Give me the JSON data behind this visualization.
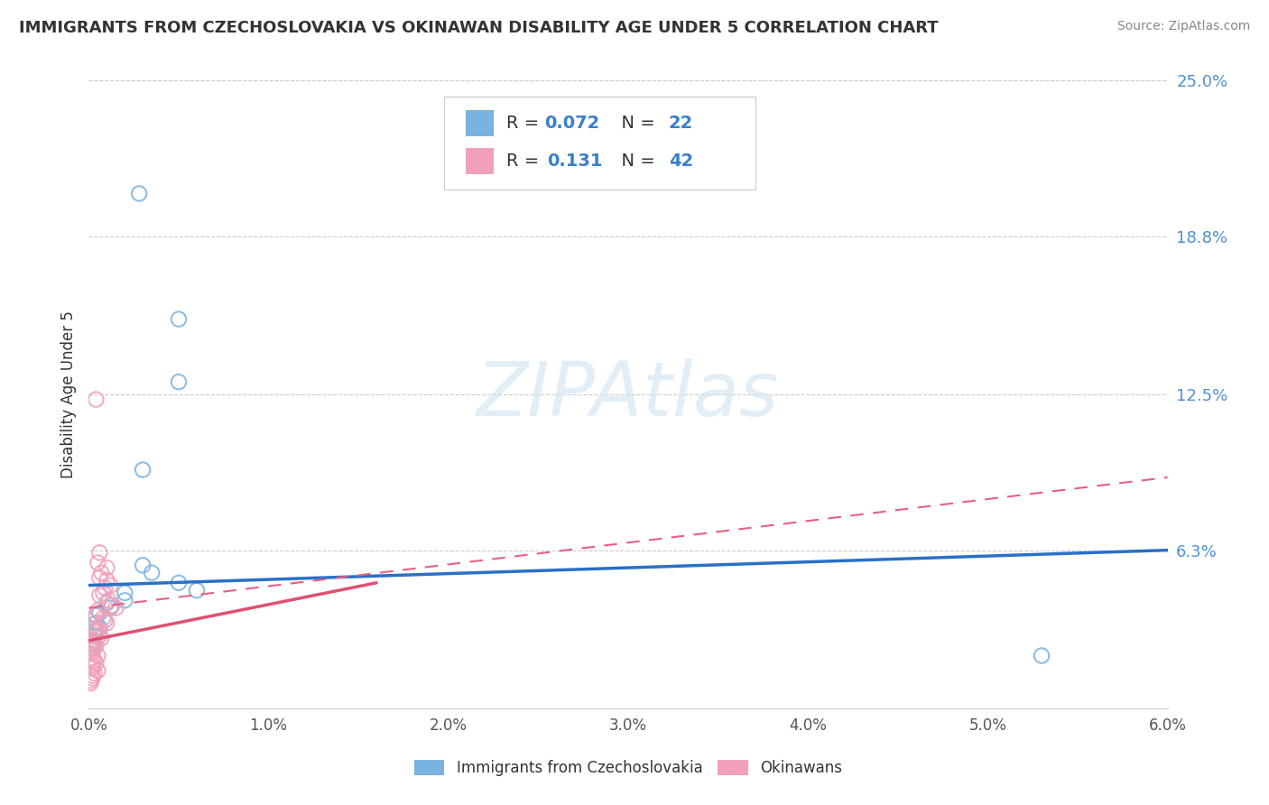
{
  "title": "IMMIGRANTS FROM CZECHOSLOVAKIA VS OKINAWAN DISABILITY AGE UNDER 5 CORRELATION CHART",
  "source": "Source: ZipAtlas.com",
  "ylabel": "Disability Age Under 5",
  "xlim": [
    0.0,
    0.06
  ],
  "ylim": [
    0.0,
    0.25
  ],
  "xtick_labels": [
    "0.0%",
    "1.0%",
    "2.0%",
    "3.0%",
    "4.0%",
    "5.0%",
    "6.0%"
  ],
  "xtick_vals": [
    0.0,
    0.01,
    0.02,
    0.03,
    0.04,
    0.05,
    0.06
  ],
  "ytick_labels_right": [
    "6.3%",
    "12.5%",
    "18.8%",
    "25.0%"
  ],
  "ytick_vals_right": [
    0.063,
    0.125,
    0.188,
    0.25
  ],
  "blue_color": "#7ab3e0",
  "pink_color": "#f0a0b8",
  "blue_scatter": [
    [
      0.0028,
      0.205
    ],
    [
      0.005,
      0.155
    ],
    [
      0.005,
      0.13
    ],
    [
      0.003,
      0.095
    ],
    [
      0.003,
      0.057
    ],
    [
      0.0035,
      0.054
    ],
    [
      0.005,
      0.05
    ],
    [
      0.006,
      0.047
    ],
    [
      0.002,
      0.046
    ],
    [
      0.002,
      0.043
    ],
    [
      0.001,
      0.042
    ],
    [
      0.0012,
      0.04
    ],
    [
      0.0006,
      0.038
    ],
    [
      0.0004,
      0.037
    ],
    [
      0.0004,
      0.034
    ],
    [
      0.0006,
      0.032
    ],
    [
      0.0004,
      0.031
    ],
    [
      0.0003,
      0.029
    ],
    [
      0.0003,
      0.027
    ],
    [
      0.0002,
      0.026
    ],
    [
      0.0001,
      0.024
    ],
    [
      0.053,
      0.021
    ]
  ],
  "pink_scatter": [
    [
      0.0004,
      0.123
    ],
    [
      0.0006,
      0.062
    ],
    [
      0.0005,
      0.058
    ],
    [
      0.001,
      0.056
    ],
    [
      0.0007,
      0.054
    ],
    [
      0.0006,
      0.052
    ],
    [
      0.001,
      0.051
    ],
    [
      0.0012,
      0.049
    ],
    [
      0.0009,
      0.048
    ],
    [
      0.0008,
      0.046
    ],
    [
      0.0006,
      0.045
    ],
    [
      0.0011,
      0.043
    ],
    [
      0.0013,
      0.041
    ],
    [
      0.0015,
      0.04
    ],
    [
      0.0005,
      0.039
    ],
    [
      0.0004,
      0.037
    ],
    [
      0.0008,
      0.036
    ],
    [
      0.0009,
      0.035
    ],
    [
      0.001,
      0.034
    ],
    [
      0.0004,
      0.032
    ],
    [
      0.0005,
      0.031
    ],
    [
      0.0004,
      0.03
    ],
    [
      0.0006,
      0.029
    ],
    [
      0.0007,
      0.028
    ],
    [
      0.0003,
      0.027
    ],
    [
      0.0003,
      0.026
    ],
    [
      0.0004,
      0.025
    ],
    [
      0.0003,
      0.024
    ],
    [
      0.0002,
      0.023
    ],
    [
      0.0002,
      0.022
    ],
    [
      0.0005,
      0.021
    ],
    [
      0.0002,
      0.02
    ],
    [
      0.0003,
      0.019
    ],
    [
      0.0004,
      0.018
    ],
    [
      0.0002,
      0.017
    ],
    [
      0.0002,
      0.016
    ],
    [
      0.0005,
      0.015
    ],
    [
      0.0003,
      0.014
    ],
    [
      0.0002,
      0.013
    ],
    [
      0.0002,
      0.012
    ],
    [
      0.0001,
      0.011
    ],
    [
      0.0001,
      0.01
    ]
  ],
  "blue_R": 0.072,
  "blue_N": 22,
  "pink_R": 0.131,
  "pink_N": 42,
  "blue_trend": [
    0.0,
    0.06,
    0.049,
    0.063
  ],
  "pink_trend_solid": [
    0.0,
    0.016,
    0.027,
    0.05
  ],
  "pink_trend_dashed": [
    0.0,
    0.06,
    0.04,
    0.092
  ],
  "watermark": "ZIPAtlas",
  "background_color": "#ffffff",
  "grid_color": "#cccccc"
}
